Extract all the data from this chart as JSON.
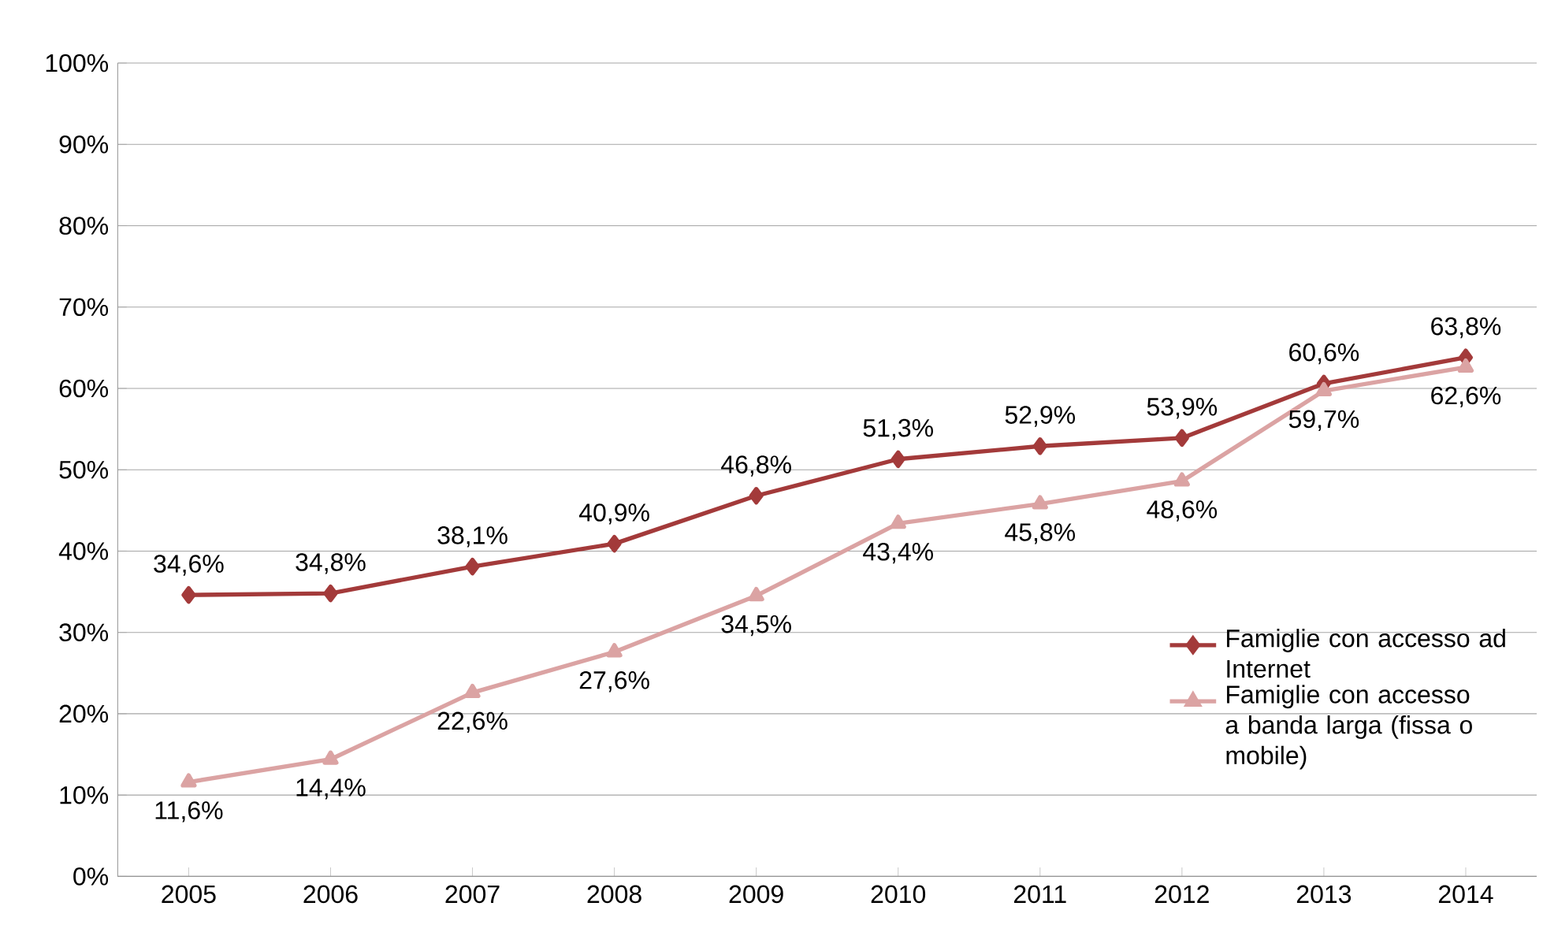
{
  "chart_data": {
    "type": "line",
    "categories": [
      "2005",
      "2006",
      "2007",
      "2008",
      "2009",
      "2010",
      "2011",
      "2012",
      "2013",
      "2014"
    ],
    "series": [
      {
        "name": "Famiglie con accesso ad Internet",
        "color": "#a33a3a",
        "marker": "diamond",
        "values": [
          34.6,
          34.8,
          38.1,
          40.9,
          46.8,
          51.3,
          52.9,
          53.9,
          60.6,
          63.8
        ],
        "value_labels": [
          "34,6%",
          "34,8%",
          "38,1%",
          "40,9%",
          "46,8%",
          "51,3%",
          "52,9%",
          "53,9%",
          "60,6%",
          "63,8%"
        ]
      },
      {
        "name": "Famiglie con accesso a banda larga (fissa o mobile)",
        "color": "#dba3a3",
        "marker": "triangle",
        "values": [
          11.6,
          14.4,
          22.6,
          27.6,
          34.5,
          43.4,
          45.8,
          48.6,
          59.7,
          62.6
        ],
        "value_labels": [
          "11,6%",
          "14,4%",
          "22,6%",
          "27,6%",
          "34,5%",
          "43,4%",
          "45,8%",
          "48,6%",
          "59,7%",
          "62,6%"
        ]
      }
    ],
    "ylim": [
      0,
      100
    ],
    "yticks": [
      {
        "value": 0,
        "label": "0%"
      },
      {
        "value": 10,
        "label": "10%"
      },
      {
        "value": 20,
        "label": "20%"
      },
      {
        "value": 30,
        "label": "30%"
      },
      {
        "value": 40,
        "label": "40%"
      },
      {
        "value": 50,
        "label": "50%"
      },
      {
        "value": 60,
        "label": "60%"
      },
      {
        "value": 70,
        "label": "70%"
      },
      {
        "value": 80,
        "label": "80%"
      },
      {
        "value": 90,
        "label": "90%"
      },
      {
        "value": 100,
        "label": "100%"
      }
    ],
    "grid": "y",
    "legend": "right",
    "line_style": "solid"
  }
}
